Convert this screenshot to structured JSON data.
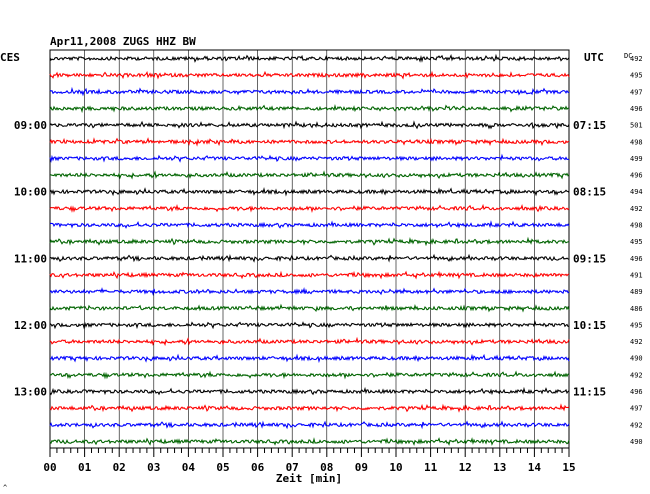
{
  "chart_data": {
    "type": "line",
    "title": "Apr11,2008   ZUGS HHZ BW",
    "left_header": "CES",
    "right_header": "UTC",
    "dc_header": "DC",
    "xlabel": "Zeit [min]",
    "xlim": [
      0,
      15
    ],
    "x_ticks": [
      "00",
      "01",
      "02",
      "03",
      "04",
      "05",
      "06",
      "07",
      "08",
      "09",
      "10",
      "11",
      "12",
      "13",
      "14",
      "15"
    ],
    "trace_colors": [
      "#000000",
      "#ff0000",
      "#0000ff",
      "#006400"
    ],
    "hour_labels_left": [
      "09:00",
      "10:00",
      "11:00",
      "12:00",
      "13:00"
    ],
    "hour_labels_right": [
      "07:15",
      "08:15",
      "09:15",
      "10:15",
      "11:15"
    ],
    "dc_values": [
      "492",
      "495",
      "497",
      "496",
      "501",
      "498",
      "499",
      "496",
      "494",
      "492",
      "498",
      "495",
      "496",
      "491",
      "489",
      "486",
      "495",
      "492",
      "490",
      "492",
      "496",
      "497",
      "492",
      "490"
    ],
    "footer_mark": "^"
  }
}
